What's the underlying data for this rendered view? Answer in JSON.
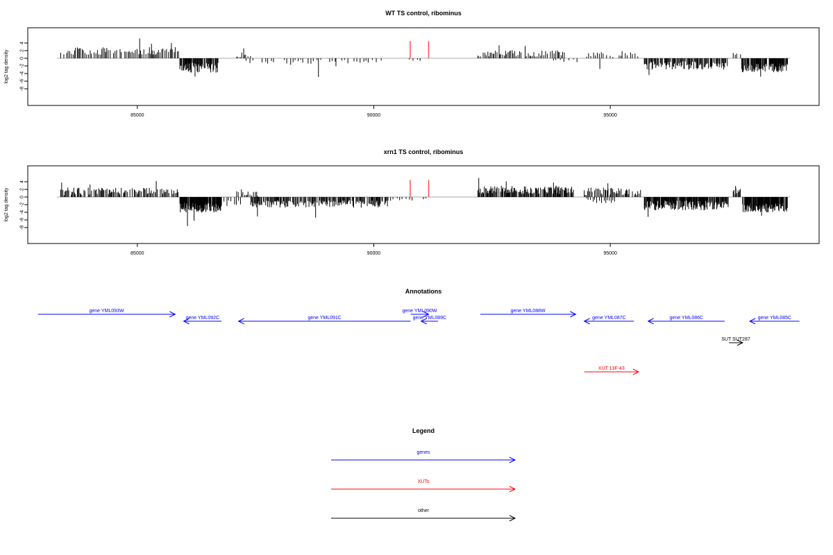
{
  "colors": {
    "blue": "#0000ff",
    "red": "#ff0000",
    "black": "#000000",
    "axis": "#000000",
    "baseline": "#aaaaaa",
    "red_track": "#ff4d4d"
  },
  "chart_data": [
    {
      "type": "bar",
      "title": "WT TS control, ribominus",
      "ylabel": "log2 tag density",
      "xlim": [
        83300,
        98800
      ],
      "ylim": [
        -8,
        6
      ],
      "xticks": [
        85000,
        90000,
        95000
      ],
      "yticks": [
        4,
        2,
        0,
        -2,
        -4,
        -6,
        -8
      ],
      "markers": [
        90770,
        91160
      ],
      "segments": [
        {
          "x0": 83380,
          "x1": 85880,
          "mean": 1.9,
          "amp": 1.0,
          "step": 32,
          "seed": 11,
          "peaks": [
            [
              85050,
              5.2
            ],
            [
              85300,
              3.8
            ],
            [
              85720,
              4.0
            ]
          ]
        },
        {
          "x0": 85900,
          "x1": 86720,
          "mean": -2.5,
          "amp": 1.3,
          "step": 13,
          "seed": 23,
          "peaks": [
            [
              86220,
              -4.8
            ]
          ]
        },
        {
          "x0": 87100,
          "x1": 87420,
          "mean": 1.0,
          "amp": 0.7,
          "step": 40,
          "seed": 31,
          "peaks": [
            [
              87250,
              2.6
            ]
          ]
        },
        {
          "x0": 87300,
          "x1": 90250,
          "mean": -0.9,
          "amp": 0.8,
          "step": 60,
          "seed": 37,
          "peaks": [
            [
              88830,
              -4.9
            ],
            [
              89200,
              -2.1
            ]
          ]
        },
        {
          "x0": 90750,
          "x1": 91000,
          "mean": -0.9,
          "amp": 0.6,
          "step": 60,
          "seed": 41,
          "peaks": []
        },
        {
          "x0": 92200,
          "x1": 94050,
          "mean": 1.3,
          "amp": 0.9,
          "step": 30,
          "seed": 43,
          "peaks": [
            [
              92650,
              3.4
            ],
            [
              93200,
              3.2
            ]
          ]
        },
        {
          "x0": 93800,
          "x1": 94300,
          "mean": -0.6,
          "amp": 0.4,
          "step": 80,
          "seed": 47,
          "peaks": []
        },
        {
          "x0": 94500,
          "x1": 95600,
          "mean": 1.0,
          "amp": 0.7,
          "step": 60,
          "seed": 53,
          "peaks": [
            [
              94780,
              -2.8
            ],
            [
              95250,
              1.9
            ]
          ]
        },
        {
          "x0": 95720,
          "x1": 97480,
          "mean": -1.9,
          "amp": 1.1,
          "step": 16,
          "seed": 59,
          "peaks": [
            [
              95820,
              -4.4
            ]
          ]
        },
        {
          "x0": 97600,
          "x1": 97760,
          "mean": 1.2,
          "amp": 0.3,
          "step": 40,
          "seed": 61,
          "peaks": []
        },
        {
          "x0": 97780,
          "x1": 98750,
          "mean": -2.5,
          "amp": 1.2,
          "step": 11,
          "seed": 67,
          "peaks": [
            [
              98180,
              -4.8
            ]
          ]
        }
      ]
    },
    {
      "type": "bar",
      "title": "xrn1 TS control, ribominus",
      "ylabel": "log2 tag density",
      "xlim": [
        83300,
        98800
      ],
      "ylim": [
        -8,
        6
      ],
      "xticks": [
        85000,
        90000,
        95000
      ],
      "yticks": [
        4,
        2,
        0,
        -2,
        -4,
        -6,
        -8
      ],
      "markers": [
        90770,
        91160
      ],
      "segments": [
        {
          "x0": 83380,
          "x1": 85880,
          "mean": 1.5,
          "amp": 1.0,
          "step": 22,
          "seed": 71,
          "peaks": [
            [
              83400,
              3.8
            ],
            [
              84000,
              3.3
            ],
            [
              85400,
              4.2
            ]
          ]
        },
        {
          "x0": 85900,
          "x1": 86780,
          "mean": -2.8,
          "amp": 1.3,
          "step": 8,
          "seed": 73,
          "peaks": [
            [
              86060,
              -7.6
            ],
            [
              86200,
              -6.2
            ]
          ]
        },
        {
          "x0": 86650,
          "x1": 87200,
          "mean": -1.5,
          "amp": 1.0,
          "step": 50,
          "seed": 79,
          "peaks": []
        },
        {
          "x0": 87100,
          "x1": 87550,
          "mean": 1.0,
          "amp": 0.8,
          "step": 30,
          "seed": 83,
          "peaks": [
            [
              87200,
              2.0
            ]
          ]
        },
        {
          "x0": 87400,
          "x1": 90300,
          "mean": -1.8,
          "amp": 1.0,
          "step": 17,
          "seed": 89,
          "peaks": [
            [
              88770,
              -5.4
            ],
            [
              87540,
              -5.1
            ]
          ]
        },
        {
          "x0": 90300,
          "x1": 91100,
          "mean": -0.6,
          "amp": 0.4,
          "step": 70,
          "seed": 97,
          "peaks": []
        },
        {
          "x0": 92200,
          "x1": 94230,
          "mean": 1.9,
          "amp": 1.1,
          "step": 16,
          "seed": 101,
          "peaks": [
            [
              92220,
              5.0
            ],
            [
              92800,
              4.1
            ],
            [
              93800,
              3.8
            ]
          ]
        },
        {
          "x0": 94450,
          "x1": 95650,
          "mean": 1.5,
          "amp": 1.0,
          "step": 22,
          "seed": 103,
          "peaks": [
            [
              94950,
              3.6
            ]
          ]
        },
        {
          "x0": 94500,
          "x1": 95100,
          "mean": -1.0,
          "amp": 0.7,
          "step": 45,
          "seed": 107,
          "peaks": []
        },
        {
          "x0": 95720,
          "x1": 97500,
          "mean": -2.2,
          "amp": 1.3,
          "step": 10,
          "seed": 109,
          "peaks": [
            [
              95800,
              -5.2
            ]
          ]
        },
        {
          "x0": 97600,
          "x1": 97760,
          "mean": 1.5,
          "amp": 0.8,
          "step": 20,
          "seed": 113,
          "peaks": [
            [
              97650,
              2.9
            ]
          ]
        },
        {
          "x0": 97800,
          "x1": 98750,
          "mean": -2.7,
          "amp": 1.3,
          "step": 8,
          "seed": 127,
          "peaks": [
            [
              98200,
              -4.9
            ]
          ]
        }
      ]
    }
  ],
  "annotations": {
    "title": "Annotations",
    "xlim": [
      83300,
      98800
    ],
    "items": [
      {
        "label": "gene YML093W",
        "x0": 82900,
        "x1": 85800,
        "dir": "right",
        "row": 0,
        "color": "blue"
      },
      {
        "label": "gene YML092C",
        "x0": 85980,
        "x1": 86780,
        "dir": "left",
        "row": 1,
        "color": "blue"
      },
      {
        "label": "gene YML091C",
        "x0": 87140,
        "x1": 90780,
        "dir": "left",
        "row": 1,
        "color": "blue"
      },
      {
        "label": "gene YML090W",
        "x0": 90780,
        "x1": 91160,
        "dir": "right",
        "row": 0,
        "color": "blue"
      },
      {
        "label": "gene YML089C",
        "x0": 91000,
        "x1": 91360,
        "dir": "left",
        "row": 1,
        "color": "blue"
      },
      {
        "label": "gene YML088W",
        "x0": 92250,
        "x1": 94270,
        "dir": "right",
        "row": 0,
        "color": "blue"
      },
      {
        "label": "gene YML087C",
        "x0": 94450,
        "x1": 95500,
        "dir": "left",
        "row": 1,
        "color": "blue"
      },
      {
        "label": "gene YML086C",
        "x0": 95800,
        "x1": 97420,
        "dir": "left",
        "row": 1,
        "color": "blue"
      },
      {
        "label": "gene YML085C",
        "x0": 97950,
        "x1": 99000,
        "dir": "left",
        "row": 1,
        "color": "blue"
      },
      {
        "label": "SUT SUT287",
        "x0": 97510,
        "x1": 97800,
        "dir": "right",
        "row": 2,
        "color": "black"
      },
      {
        "label": "XUT 13F-43",
        "x0": 94450,
        "x1": 95600,
        "dir": "right",
        "row": 3,
        "color": "red"
      }
    ]
  },
  "legend": {
    "title": "Legend",
    "items": [
      {
        "label": "genes",
        "color": "blue"
      },
      {
        "label": "XUTs",
        "color": "red"
      },
      {
        "label": "other",
        "color": "black"
      }
    ]
  }
}
